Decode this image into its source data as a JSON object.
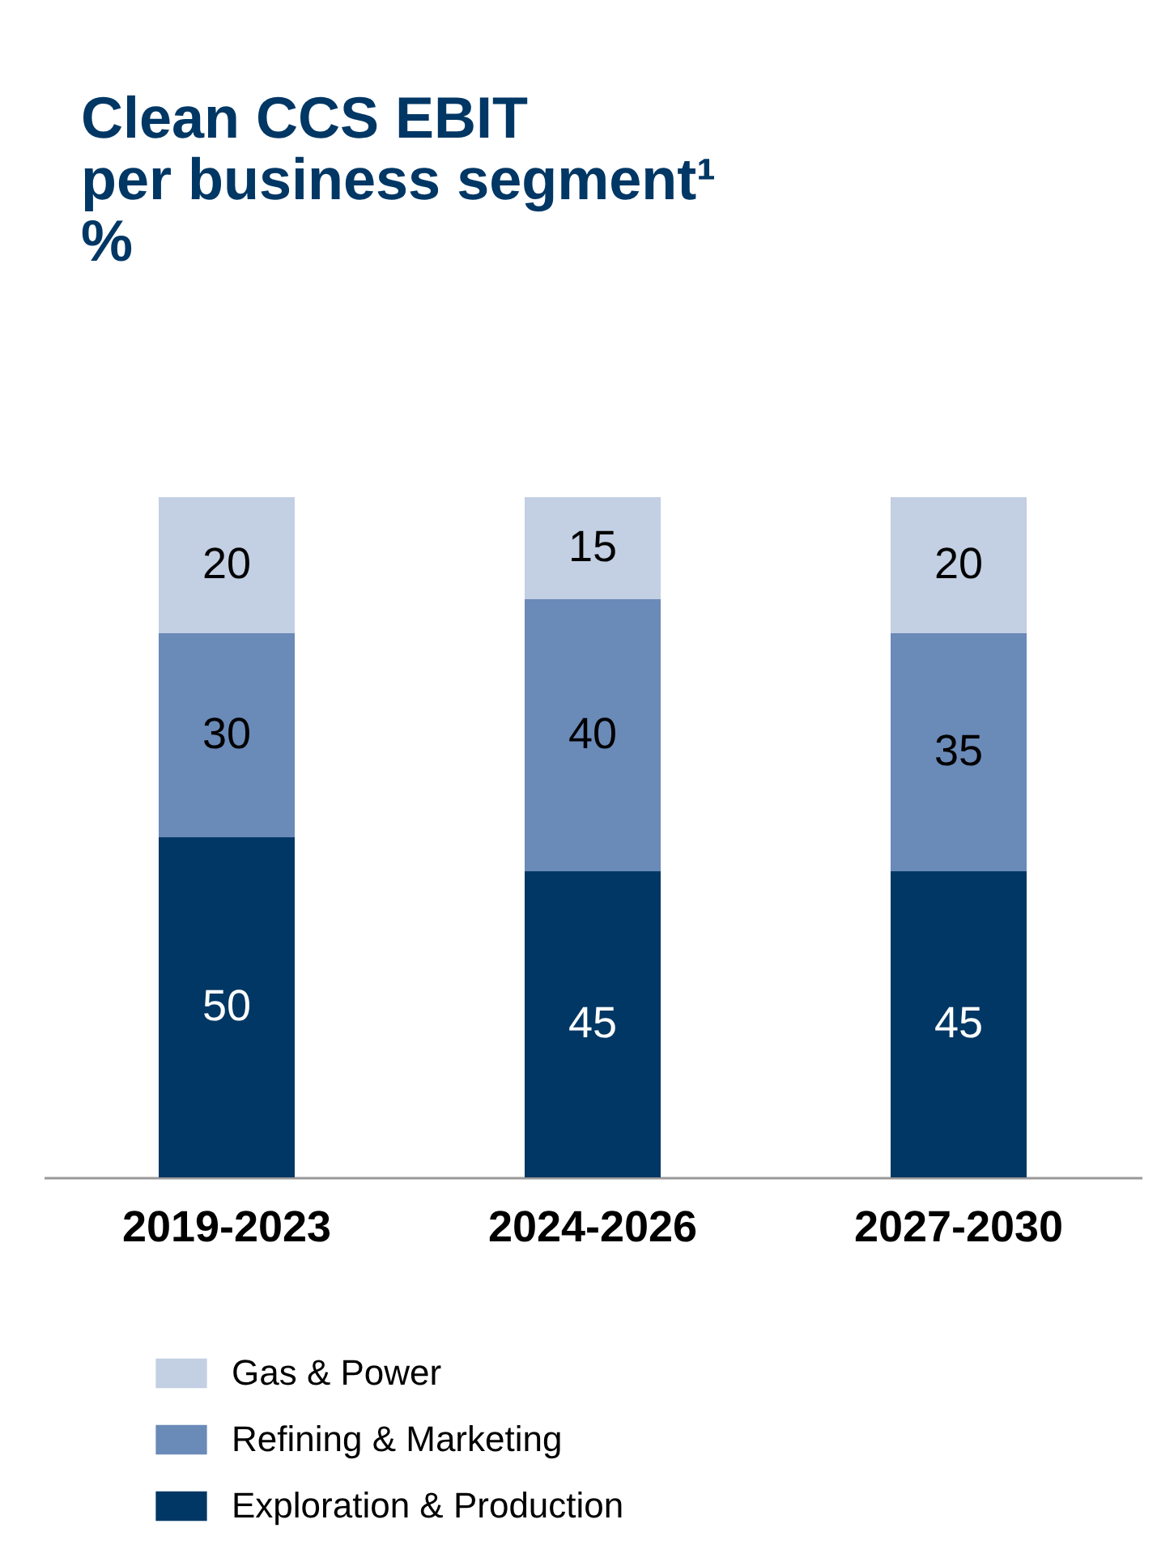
{
  "chart_data": {
    "type": "bar",
    "title": [
      "Clean CCS EBIT",
      "per business segment¹",
      "%"
    ],
    "categories": [
      "2019-2023",
      "2024-2026",
      "2027-2030"
    ],
    "stacked": true,
    "legend": "bottom",
    "data_labels": true,
    "series": [
      {
        "name": "Exploration & Production",
        "color": "#003764",
        "values": [
          50,
          45,
          45
        ]
      },
      {
        "name": "Refining & Marketing",
        "color": "#6a8ab8",
        "values": [
          30,
          40,
          35
        ]
      },
      {
        "name": "Gas & Power",
        "color": "#c3cfe2",
        "values": [
          20,
          15,
          20
        ]
      }
    ]
  }
}
